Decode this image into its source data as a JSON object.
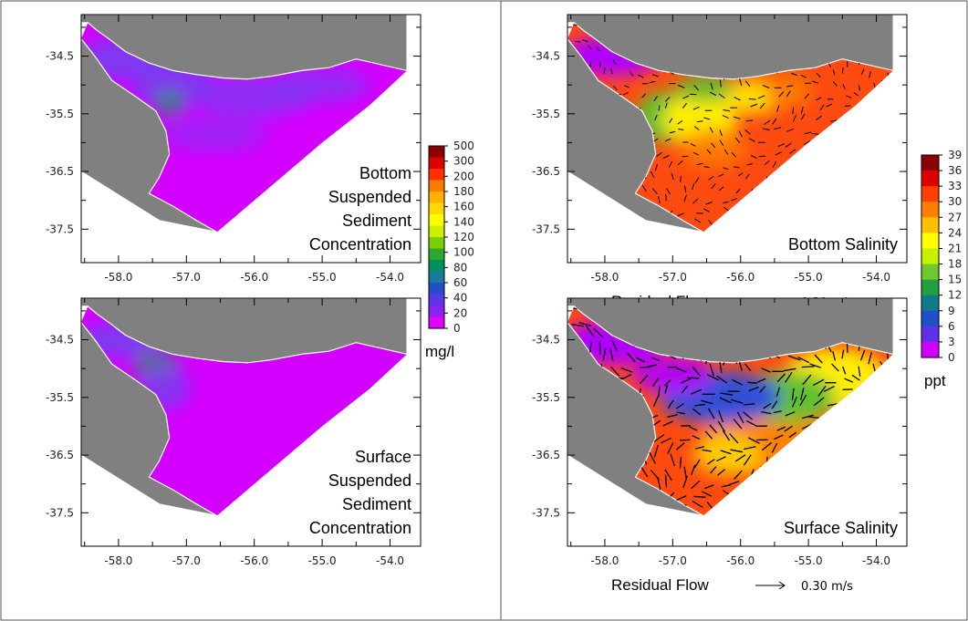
{
  "chart_data": [
    {
      "type": "heatmap",
      "panel": "bottom-suspended-sediment",
      "title_lines": [
        "Bottom",
        "Suspended",
        "Sediment",
        "Concentration"
      ],
      "xticks": [
        "-58.0",
        "-57.0",
        "-56.0",
        "-55.0",
        "-54.0"
      ],
      "yticks": [
        "-34.5",
        "-35.5",
        "-36.5",
        "-37.5"
      ],
      "colormap": "sediment",
      "colorbar": "sediment"
    },
    {
      "type": "heatmap",
      "panel": "surface-suspended-sediment",
      "title_lines": [
        "Surface",
        "Suspended",
        "Sediment",
        "Concentration"
      ],
      "xticks": [
        "-58.0",
        "-57.0",
        "-56.0",
        "-55.0",
        "-54.0"
      ],
      "yticks": [
        "-34.5",
        "-35.5",
        "-36.5",
        "-37.5"
      ],
      "colormap": "sediment",
      "colorbar": "sediment"
    },
    {
      "type": "heatmap",
      "panel": "bottom-salinity",
      "title_lines": [
        "Bottom Salinity"
      ],
      "xticks": [
        "-58.0",
        "-57.0",
        "-56.0",
        "-55.0",
        "-54.0"
      ],
      "yticks": [
        "-34.5",
        "-35.5",
        "-36.5",
        "-37.5"
      ],
      "colormap": "salinity",
      "colorbar": "salinity",
      "flow_label": "Residual Flow",
      "flow_scale": "0.30 m/s"
    },
    {
      "type": "heatmap",
      "panel": "surface-salinity",
      "title_lines": [
        "Surface Salinity"
      ],
      "xticks": [
        "-58.0",
        "-57.0",
        "-56.0",
        "-55.0",
        "-54.0"
      ],
      "yticks": [
        "-34.5",
        "-35.5",
        "-36.5",
        "-37.5"
      ],
      "colormap": "salinity",
      "colorbar": "salinity",
      "flow_label": "Residual Flow",
      "flow_scale": "0.30 m/s"
    }
  ],
  "colorbars": {
    "sediment": {
      "unit": "mg/l",
      "labels": [
        "500",
        "300",
        "200",
        "180",
        "160",
        "140",
        "120",
        "100",
        "80",
        "60",
        "40",
        "20",
        "0"
      ],
      "colors": [
        "#8b0000",
        "#e00000",
        "#ff3000",
        "#ff7a00",
        "#ffb000",
        "#ffd800",
        "#ffff00",
        "#c8f000",
        "#7ad000",
        "#30a830",
        "#009060",
        "#1a7a9a",
        "#2050c8",
        "#5a38e6",
        "#9020f0",
        "#e000ff"
      ]
    },
    "salinity": {
      "unit": "ppt",
      "labels": [
        "39",
        "36",
        "33",
        "30",
        "27",
        "24",
        "21",
        "18",
        "15",
        "12",
        "9",
        "6",
        "3",
        "0"
      ],
      "colors": [
        "#8b0000",
        "#e00000",
        "#ff4000",
        "#ff8000",
        "#ffc000",
        "#ffff00",
        "#c8f000",
        "#70c830",
        "#20a040",
        "#107a8a",
        "#2050c8",
        "#6030e8",
        "#d000ff"
      ]
    }
  },
  "colors": {
    "land": "#808080",
    "sediment_low": "#d400ff",
    "sediment_mid": "#7a3cf0",
    "sediment_teal": "#2a8a7a",
    "salinity_fresh": "#b000ff",
    "salinity_blue": "#3050d8",
    "salinity_green": "#60c030",
    "salinity_yellow": "#ffee00",
    "salinity_orange": "#ff8000",
    "salinity_red": "#ff4a10"
  }
}
